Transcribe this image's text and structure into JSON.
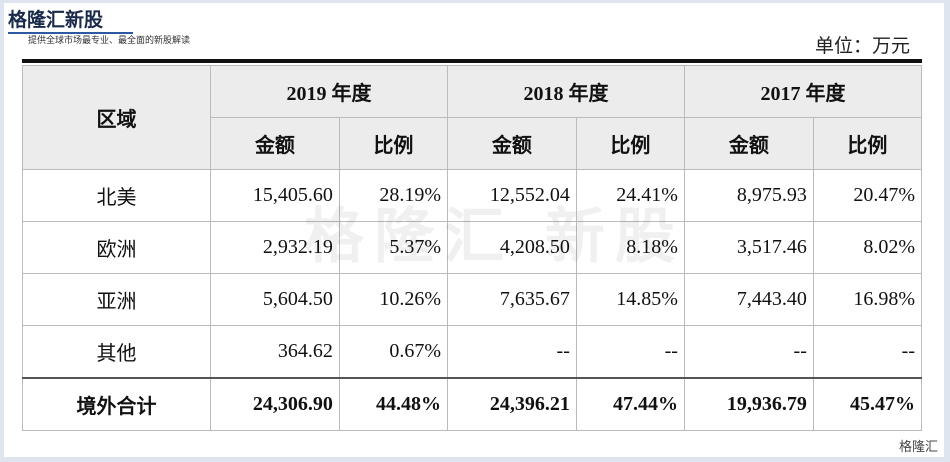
{
  "header": {
    "brand": "格隆汇新股",
    "tagline": "提供全球市场最专业、最全面的新股解读",
    "unit": "单位：万元"
  },
  "watermark": "格隆汇 新股",
  "footer_logo": "格隆汇",
  "table": {
    "header_row1": [
      "区域",
      "2019 年度",
      "2018 年度",
      "2017 年度"
    ],
    "header_row2": [
      "金额",
      "比例",
      "金额",
      "比例",
      "金额",
      "比例"
    ],
    "rows": [
      [
        "北美",
        "15,405.60",
        "28.19%",
        "12,552.04",
        "24.41%",
        "8,975.93",
        "20.47%"
      ],
      [
        "欧洲",
        "2,932.19",
        "5.37%",
        "4,208.50",
        "8.18%",
        "3,517.46",
        "8.02%"
      ],
      [
        "亚洲",
        "5,604.50",
        "10.26%",
        "7,635.67",
        "14.85%",
        "7,443.40",
        "16.98%"
      ],
      [
        "其他",
        "364.62",
        "0.67%",
        "--",
        "--",
        "--",
        "--"
      ],
      [
        "境外合计",
        "24,306.90",
        "44.48%",
        "24,396.21",
        "47.44%",
        "19,936.79",
        "45.47%"
      ]
    ]
  }
}
